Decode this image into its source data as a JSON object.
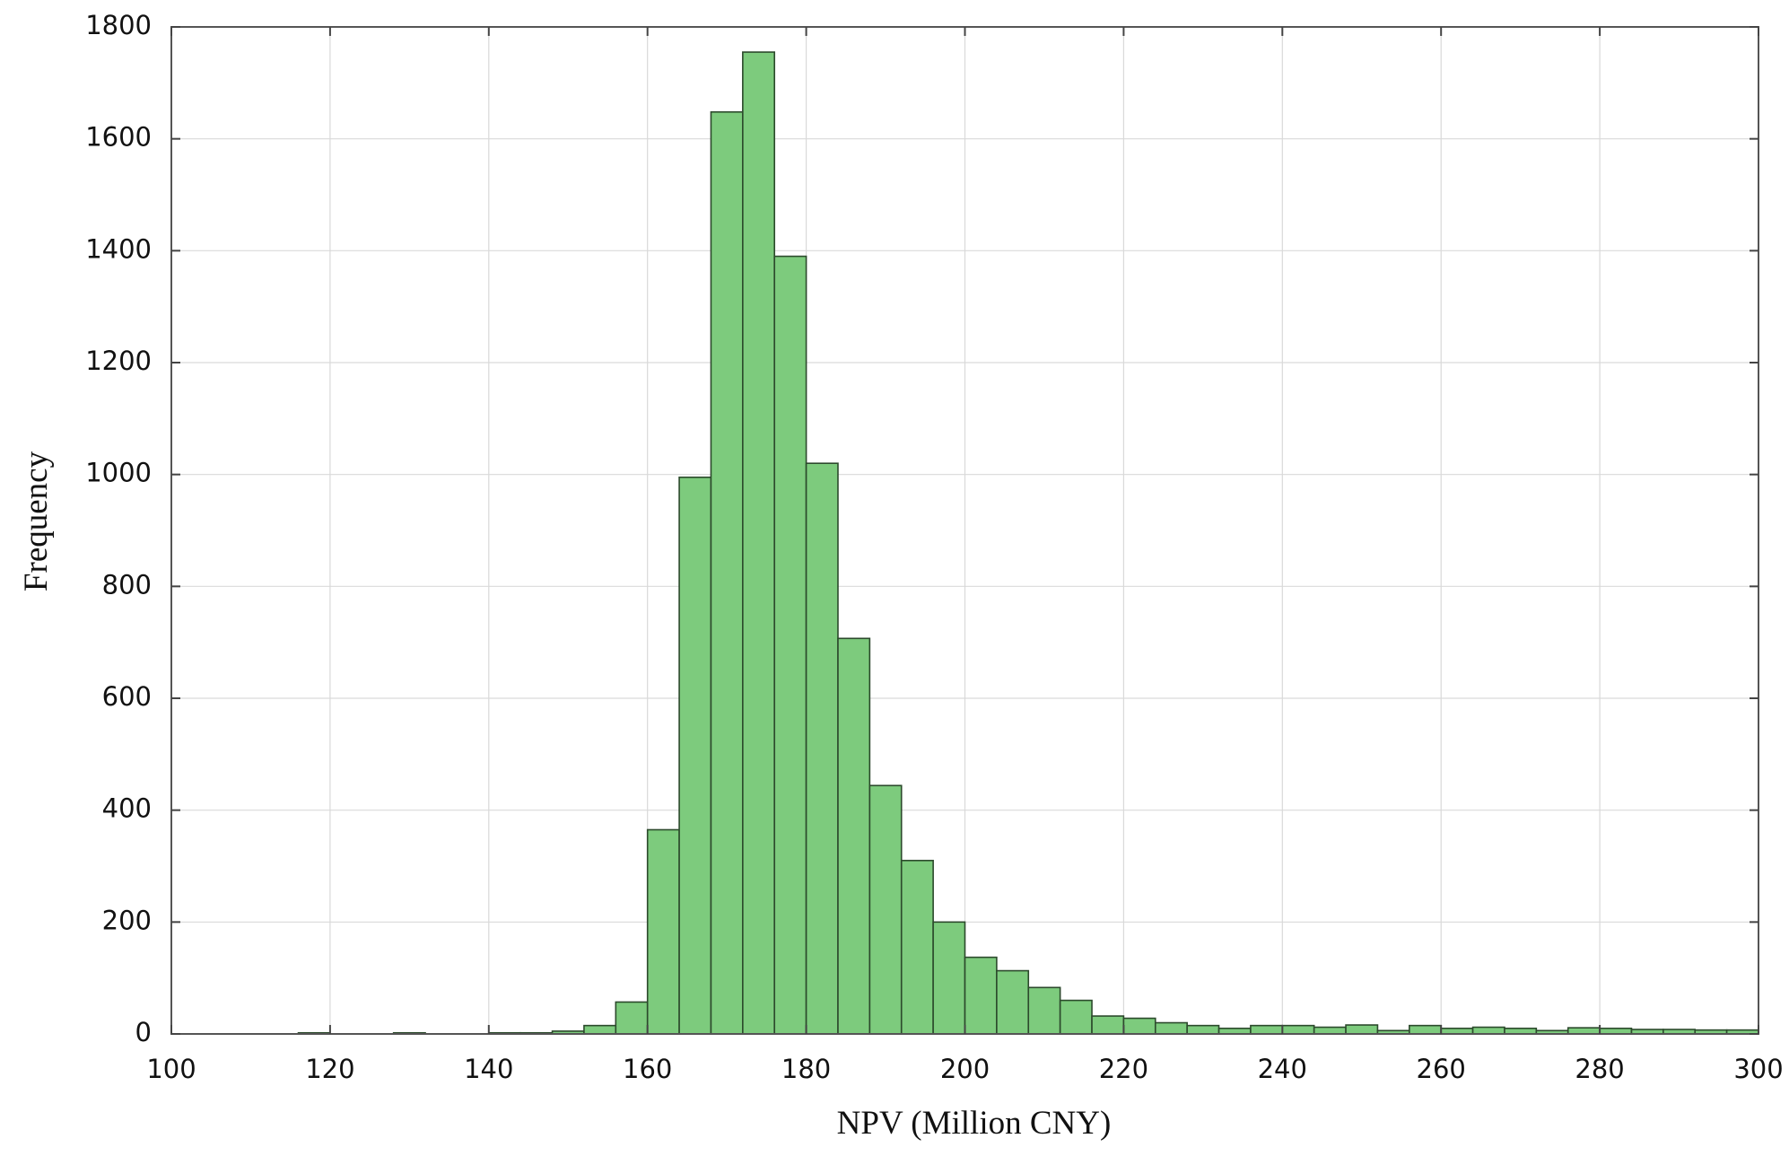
{
  "chart_data": {
    "type": "bar",
    "title": "",
    "xlabel": "NPV (Million CNY)",
    "ylabel": "Frequency",
    "xlim": [
      100,
      300
    ],
    "ylim": [
      0,
      1800
    ],
    "xticks": [
      100,
      120,
      140,
      160,
      180,
      200,
      220,
      240,
      260,
      280,
      300
    ],
    "yticks": [
      0,
      200,
      400,
      600,
      800,
      1000,
      1200,
      1400,
      1600,
      1800
    ],
    "grid": true,
    "bar_color": "#7dcb7d",
    "bin_edges": [
      100,
      104,
      108,
      112,
      116,
      120,
      124,
      128,
      132,
      136,
      140,
      144,
      148,
      152,
      156,
      160,
      164,
      168,
      172,
      176,
      180,
      184,
      188,
      192,
      196,
      200,
      204,
      208,
      212,
      216,
      220,
      224,
      228,
      232,
      236,
      240,
      244,
      248,
      252,
      256,
      260,
      264,
      268,
      272,
      276,
      280,
      284,
      288,
      292,
      296,
      300
    ],
    "values": [
      0,
      0,
      0,
      0,
      2,
      0,
      0,
      2,
      0,
      0,
      2,
      2,
      5,
      15,
      57,
      365,
      995,
      1648,
      1755,
      1390,
      1020,
      707,
      444,
      310,
      200,
      137,
      113,
      83,
      60,
      32,
      28,
      20,
      15,
      10,
      15,
      15,
      12,
      16,
      6,
      15,
      10,
      12,
      10,
      6,
      11,
      10,
      8,
      8,
      7,
      7
    ]
  }
}
